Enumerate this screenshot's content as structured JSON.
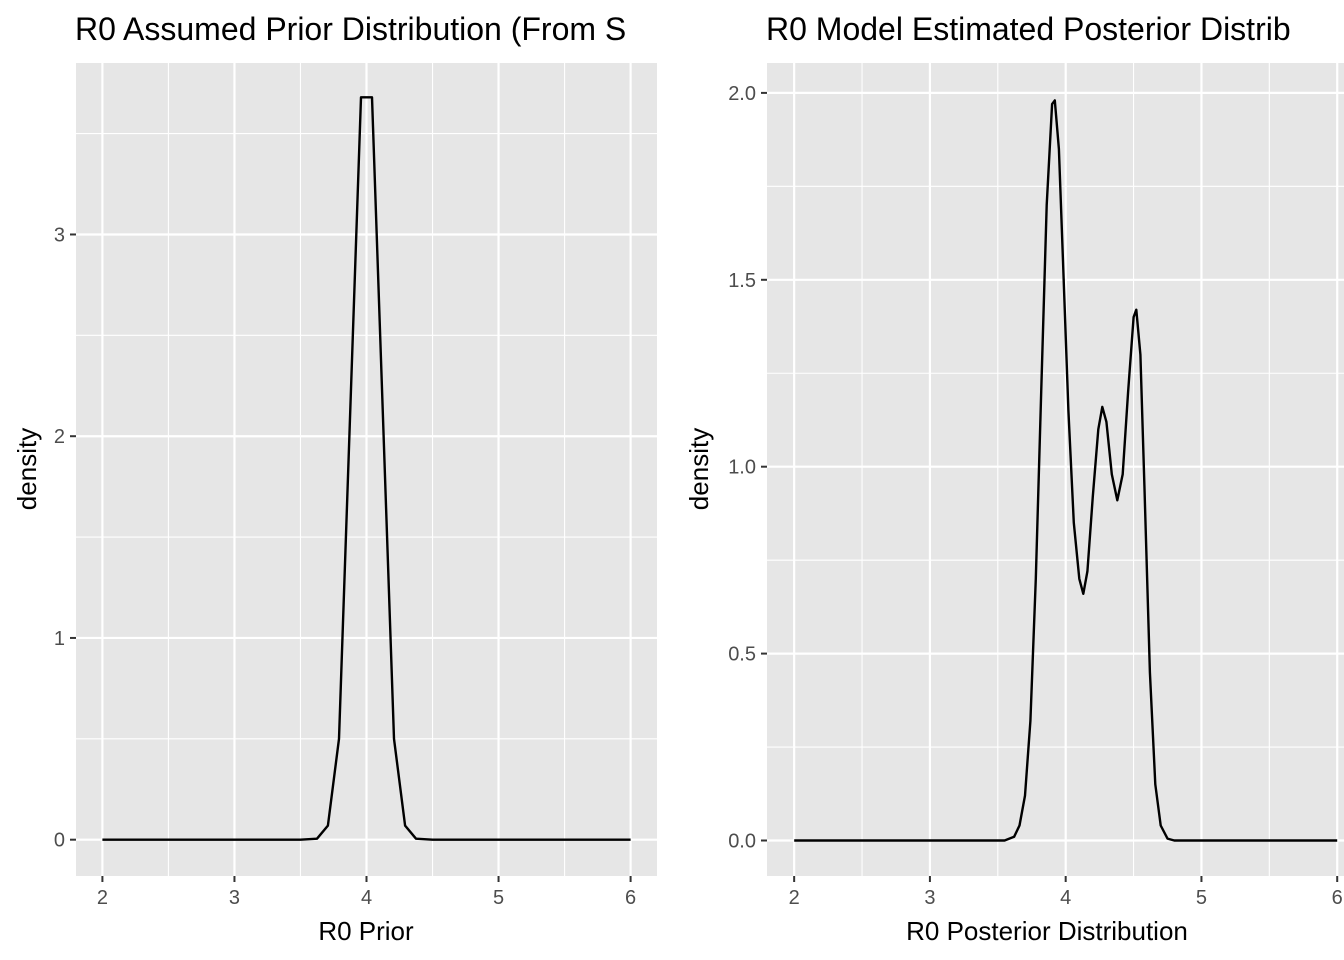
{
  "chart_data": [
    {
      "type": "line",
      "title": "R0 Assumed Prior Distribution (From S",
      "xlabel": "R0 Prior",
      "ylabel": "density",
      "xlim": [
        1.8,
        6.2
      ],
      "ylim": [
        -0.18,
        3.85
      ],
      "x_ticks": [
        2,
        3,
        4,
        5,
        6
      ],
      "x_tick_labels": [
        "2",
        "3",
        "4",
        "5",
        "6"
      ],
      "y_ticks": [
        0,
        1,
        2,
        3
      ],
      "y_tick_labels": [
        "0",
        "1",
        "2",
        "3"
      ],
      "grid": true,
      "legend": "none",
      "series": [
        {
          "color": "#000000",
          "points": [
            [
              2.0,
              0
            ],
            [
              3.5,
              0
            ],
            [
              3.625,
              0.005
            ],
            [
              3.708,
              0.07
            ],
            [
              3.792,
              0.5
            ],
            [
              3.958,
              3.68
            ],
            [
              4.042,
              3.68
            ],
            [
              4.208,
              0.5
            ],
            [
              4.292,
              0.07
            ],
            [
              4.375,
              0.005
            ],
            [
              4.5,
              0
            ],
            [
              6.0,
              0
            ]
          ]
        }
      ]
    },
    {
      "type": "line",
      "title": "R0 Model Estimated Posterior Distrib",
      "xlabel": "R0 Posterior Distribution",
      "ylabel": "density",
      "xlim": [
        1.8,
        6.05
      ],
      "ylim": [
        -0.095,
        2.08
      ],
      "x_ticks": [
        2,
        3,
        4,
        5,
        6
      ],
      "x_tick_labels": [
        "2",
        "3",
        "4",
        "5",
        "6"
      ],
      "y_ticks": [
        0.0,
        0.5,
        1.0,
        1.5,
        2.0
      ],
      "y_tick_labels": [
        "0.0",
        "0.5",
        "1.0",
        "1.5",
        "2.0"
      ],
      "grid": true,
      "legend": "none",
      "series": [
        {
          "color": "#000000",
          "points": [
            [
              2.0,
              0
            ],
            [
              3.55,
              0
            ],
            [
              3.62,
              0.01
            ],
            [
              3.66,
              0.04
            ],
            [
              3.7,
              0.12
            ],
            [
              3.74,
              0.32
            ],
            [
              3.78,
              0.7
            ],
            [
              3.82,
              1.2
            ],
            [
              3.86,
              1.7
            ],
            [
              3.9,
              1.97
            ],
            [
              3.92,
              1.98
            ],
            [
              3.95,
              1.85
            ],
            [
              3.98,
              1.55
            ],
            [
              4.02,
              1.15
            ],
            [
              4.06,
              0.85
            ],
            [
              4.1,
              0.7
            ],
            [
              4.13,
              0.66
            ],
            [
              4.16,
              0.72
            ],
            [
              4.2,
              0.92
            ],
            [
              4.24,
              1.1
            ],
            [
              4.27,
              1.16
            ],
            [
              4.3,
              1.12
            ],
            [
              4.34,
              0.98
            ],
            [
              4.38,
              0.91
            ],
            [
              4.42,
              0.98
            ],
            [
              4.46,
              1.2
            ],
            [
              4.5,
              1.4
            ],
            [
              4.52,
              1.42
            ],
            [
              4.55,
              1.3
            ],
            [
              4.58,
              0.95
            ],
            [
              4.62,
              0.45
            ],
            [
              4.66,
              0.15
            ],
            [
              4.7,
              0.04
            ],
            [
              4.75,
              0.005
            ],
            [
              4.8,
              0
            ],
            [
              6.0,
              0
            ]
          ]
        }
      ]
    }
  ]
}
